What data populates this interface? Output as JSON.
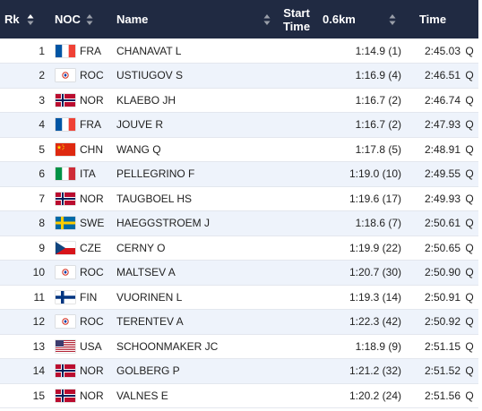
{
  "header": {
    "rk": "Rk",
    "noc": "NOC",
    "name": "Name",
    "start_line1": "Start",
    "start_line2": "Time",
    "split": "0.6km",
    "time": "Time"
  },
  "colors": {
    "header_bg": "#202a42",
    "row_alt_bg": "#eef3fb"
  },
  "rows": [
    {
      "rk": "1",
      "noc": "FRA",
      "name": "CHANAVAT L",
      "split": "1:14.9 (1)",
      "time": "2:45.03",
      "q": "Q"
    },
    {
      "rk": "2",
      "noc": "ROC",
      "name": "USTIUGOV S",
      "split": "1:16.9 (4)",
      "time": "2:46.51",
      "q": "Q"
    },
    {
      "rk": "3",
      "noc": "NOR",
      "name": "KLAEBO JH",
      "split": "1:16.7 (2)",
      "time": "2:46.74",
      "q": "Q"
    },
    {
      "rk": "4",
      "noc": "FRA",
      "name": "JOUVE R",
      "split": "1:16.7 (2)",
      "time": "2:47.93",
      "q": "Q"
    },
    {
      "rk": "5",
      "noc": "CHN",
      "name": "WANG Q",
      "split": "1:17.8 (5)",
      "time": "2:48.91",
      "q": "Q"
    },
    {
      "rk": "6",
      "noc": "ITA",
      "name": "PELLEGRINO F",
      "split": "1:19.0 (10)",
      "time": "2:49.55",
      "q": "Q"
    },
    {
      "rk": "7",
      "noc": "NOR",
      "name": "TAUGBOEL HS",
      "split": "1:19.6 (17)",
      "time": "2:49.93",
      "q": "Q"
    },
    {
      "rk": "8",
      "noc": "SWE",
      "name": "HAEGGSTROEM J",
      "split": "1:18.6 (7)",
      "time": "2:50.61",
      "q": "Q"
    },
    {
      "rk": "9",
      "noc": "CZE",
      "name": "CERNY O",
      "split": "1:19.9 (22)",
      "time": "2:50.65",
      "q": "Q"
    },
    {
      "rk": "10",
      "noc": "ROC",
      "name": "MALTSEV A",
      "split": "1:20.7 (30)",
      "time": "2:50.90",
      "q": "Q"
    },
    {
      "rk": "11",
      "noc": "FIN",
      "name": "VUORINEN L",
      "split": "1:19.3 (14)",
      "time": "2:50.91",
      "q": "Q"
    },
    {
      "rk": "12",
      "noc": "ROC",
      "name": "TERENTEV A",
      "split": "1:22.3 (42)",
      "time": "2:50.92",
      "q": "Q"
    },
    {
      "rk": "13",
      "noc": "USA",
      "name": "SCHOONMAKER JC",
      "split": "1:18.9 (9)",
      "time": "2:51.15",
      "q": "Q"
    },
    {
      "rk": "14",
      "noc": "NOR",
      "name": "GOLBERG P",
      "split": "1:21.2 (32)",
      "time": "2:51.52",
      "q": "Q"
    },
    {
      "rk": "15",
      "noc": "NOR",
      "name": "VALNES E",
      "split": "1:20.2 (24)",
      "time": "2:51.56",
      "q": "Q"
    }
  ]
}
